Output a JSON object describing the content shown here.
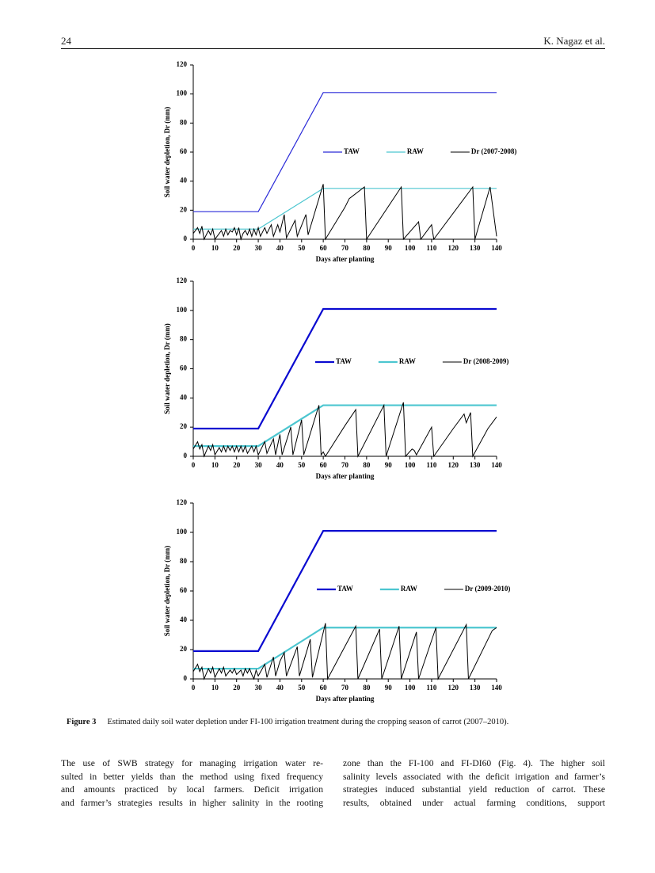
{
  "header": {
    "page_number": "24",
    "authors": "K. Nagaz et al."
  },
  "chart_data": [
    {
      "type": "line",
      "x_label": "Days after planting",
      "y_label": "Soil water depletion, Dr (mm)",
      "xlim": [
        0,
        140
      ],
      "ylim": [
        0,
        120
      ],
      "y_inverted": true,
      "xticks": [
        0,
        10,
        20,
        30,
        40,
        50,
        60,
        70,
        80,
        90,
        100,
        110,
        120,
        130,
        140
      ],
      "yticks": [
        0,
        20,
        40,
        60,
        80,
        100,
        120
      ],
      "series": [
        {
          "name": "TAW",
          "color": "#2a2ad8",
          "width": 1.2,
          "x": [
            0,
            30,
            60,
            140
          ],
          "values": [
            19,
            19,
            101,
            101
          ]
        },
        {
          "name": "RAW",
          "color": "#4cc6d0",
          "width": 1.2,
          "x": [
            0,
            30,
            60,
            140
          ],
          "values": [
            7,
            7,
            35,
            35
          ]
        },
        {
          "name": "Dr (2007-2008)",
          "color": "#000000",
          "width": 1,
          "x": [
            0,
            2,
            3,
            4,
            5,
            7,
            8,
            9,
            10,
            12,
            13,
            14,
            15,
            16,
            17,
            18,
            19,
            20,
            21,
            22,
            23,
            24,
            25,
            26,
            27,
            28,
            29,
            30,
            31,
            33,
            34,
            36,
            37,
            39,
            40,
            42,
            43,
            47,
            48,
            52,
            53,
            60,
            61,
            70,
            72,
            79,
            80,
            96,
            97,
            104,
            105,
            110,
            111,
            129,
            130,
            137,
            140
          ],
          "values": [
            4,
            8,
            4,
            9,
            0,
            6,
            3,
            7,
            0,
            4,
            6,
            2,
            7,
            3,
            6,
            5,
            8,
            3,
            8,
            0,
            4,
            6,
            3,
            7,
            2,
            7,
            3,
            8,
            2,
            8,
            4,
            10,
            2,
            10,
            5,
            17,
            1,
            13,
            2,
            17,
            3,
            38,
            0,
            22,
            28,
            36,
            0,
            36,
            0,
            12,
            0,
            10,
            0,
            36,
            0,
            36,
            2
          ]
        }
      ]
    },
    {
      "type": "line",
      "x_label": "Days after planting",
      "y_label": "Soil water depletion, Dr (mm)",
      "xlim": [
        0,
        140
      ],
      "ylim": [
        0,
        120
      ],
      "y_inverted": true,
      "xticks": [
        0,
        10,
        20,
        30,
        40,
        50,
        60,
        70,
        80,
        90,
        100,
        110,
        120,
        130,
        140
      ],
      "yticks": [
        0,
        20,
        40,
        60,
        80,
        100,
        120
      ],
      "series": [
        {
          "name": "TAW",
          "color": "#0a0ad0",
          "width": 2.2,
          "x": [
            0,
            30,
            60,
            140
          ],
          "values": [
            19,
            19,
            101,
            101
          ]
        },
        {
          "name": "RAW",
          "color": "#4cc6d0",
          "width": 2.2,
          "x": [
            0,
            30,
            60,
            140
          ],
          "values": [
            7,
            7,
            35,
            35
          ]
        },
        {
          "name": "Dr (2008-2009)",
          "color": "#000000",
          "width": 1,
          "x": [
            0,
            2,
            3,
            4,
            5,
            7,
            8,
            9,
            10,
            12,
            13,
            14,
            15,
            16,
            17,
            18,
            19,
            20,
            21,
            22,
            23,
            24,
            25,
            27,
            28,
            29,
            30,
            33,
            34,
            37,
            38,
            40,
            41,
            45,
            46,
            50,
            51,
            58,
            59,
            60,
            61,
            70,
            75,
            76,
            88,
            89,
            97,
            98,
            101,
            102,
            103,
            110,
            111,
            120,
            125,
            126,
            128,
            129,
            136,
            140
          ],
          "values": [
            5,
            10,
            5,
            8,
            0,
            7,
            4,
            8,
            1,
            6,
            3,
            7,
            3,
            7,
            4,
            7,
            3,
            7,
            3,
            7,
            3,
            7,
            2,
            7,
            3,
            7,
            1,
            10,
            2,
            12,
            1,
            15,
            1,
            20,
            1,
            25,
            1,
            35,
            1,
            3,
            0,
            21,
            32,
            0,
            35,
            0,
            37,
            0,
            5,
            4,
            1,
            20,
            0,
            19,
            29,
            23,
            30,
            0,
            19,
            27
          ]
        }
      ]
    },
    {
      "type": "line",
      "x_label": "Days after planting",
      "y_label": "Soil water depletion, Dr (mm)",
      "xlim": [
        0,
        140
      ],
      "ylim": [
        0,
        120
      ],
      "y_inverted": true,
      "xticks": [
        0,
        10,
        20,
        30,
        40,
        50,
        60,
        70,
        80,
        90,
        100,
        110,
        120,
        130,
        140
      ],
      "yticks": [
        0,
        20,
        40,
        60,
        80,
        100,
        120
      ],
      "series": [
        {
          "name": "TAW",
          "color": "#0a0ad0",
          "width": 2.2,
          "x": [
            0,
            30,
            60,
            140
          ],
          "values": [
            19,
            19,
            101,
            101
          ]
        },
        {
          "name": "RAW",
          "color": "#4cc6d0",
          "width": 2.2,
          "x": [
            0,
            30,
            60,
            140
          ],
          "values": [
            7,
            7,
            35,
            35
          ]
        },
        {
          "name": "Dr (2009-2010)",
          "color": "#000000",
          "width": 1,
          "x": [
            0,
            2,
            3,
            4,
            5,
            7,
            8,
            9,
            10,
            12,
            13,
            14,
            15,
            17,
            18,
            19,
            20,
            22,
            23,
            24,
            25,
            26,
            27,
            28,
            29,
            30,
            33,
            34,
            37,
            38,
            40,
            42,
            43,
            48,
            49,
            54,
            55,
            61,
            62,
            75,
            76,
            86,
            87,
            95,
            96,
            103,
            104,
            112,
            113,
            126,
            127,
            138,
            140
          ],
          "values": [
            5,
            10,
            5,
            8,
            0,
            7,
            4,
            8,
            1,
            7,
            4,
            8,
            2,
            6,
            4,
            7,
            3,
            6,
            2,
            7,
            4,
            7,
            3,
            0,
            6,
            2,
            10,
            1,
            15,
            2,
            12,
            18,
            2,
            22,
            2,
            27,
            1,
            38,
            0,
            36,
            0,
            34,
            0,
            36,
            0,
            32,
            0,
            35,
            0,
            37,
            0,
            33,
            35
          ]
        }
      ]
    }
  ],
  "caption": {
    "label": "Figure 3",
    "text": "Estimated daily soil water depletion under FI-100 irrigation treatment during the cropping season of carrot (2007–2010)."
  },
  "body": {
    "left_column": [
      "The use of SWB strategy for managing irrigation water re-",
      "sulted in better yields than the method using fixed frequency",
      "and amounts practiced by local farmers. Deficit irrigation",
      "and farmer’s strategies results in higher salinity in the rooting"
    ],
    "right_column": [
      "zone than the FI-100 and FI-DI60 (Fig. 4). The higher soil",
      "salinity levels associated with the deficit irrigation and farmer’s",
      "strategies induced substantial yield reduction of carrot. These",
      "results, obtained under actual farming conditions, support"
    ]
  }
}
